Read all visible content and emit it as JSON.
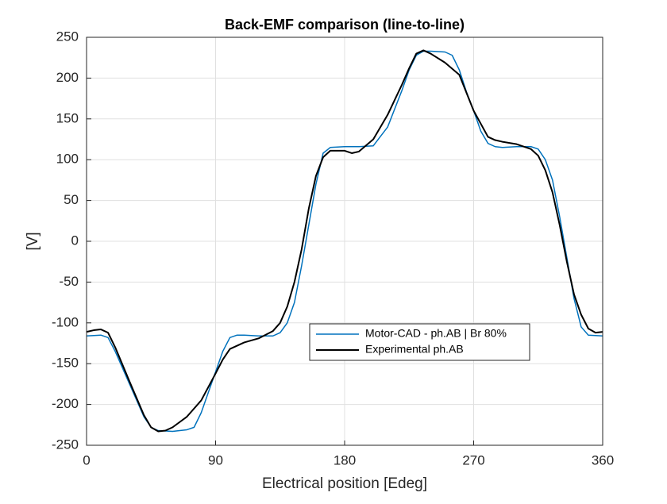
{
  "chart_data": {
    "type": "line",
    "title": "Back-EMF comparison (line-to-line)",
    "x_label": "Electrical position [Edeg]",
    "y_label": "[V]",
    "xlim": [
      0,
      360
    ],
    "xticks": [
      0,
      90,
      180,
      270,
      360
    ],
    "ylim": [
      -250,
      250
    ],
    "yticks": [
      -250,
      -200,
      -150,
      -100,
      -50,
      0,
      50,
      100,
      150,
      200,
      250
    ],
    "grid": true,
    "legend": "center",
    "series": [
      {
        "name": "Motor-CAD - ph.AB | Br 80%",
        "color": "#0072bd",
        "x": [
          0,
          10,
          15,
          20,
          30,
          40,
          45,
          50,
          60,
          70,
          75,
          80,
          85,
          90,
          95,
          100,
          105,
          110,
          120,
          130,
          135,
          140,
          145,
          150,
          155,
          160,
          165,
          170,
          180,
          190,
          200,
          210,
          220,
          225,
          230,
          235,
          240,
          250,
          255,
          260,
          265,
          270,
          275,
          280,
          285,
          290,
          300,
          310,
          315,
          320,
          325,
          330,
          335,
          340,
          345,
          350,
          360
        ],
        "values": [
          -116,
          -115,
          -118,
          -135,
          -175,
          -215,
          -228,
          -232,
          -233,
          -231,
          -228,
          -210,
          -185,
          -160,
          -135,
          -118,
          -115,
          -115,
          -116,
          -116,
          -112,
          -100,
          -75,
          -30,
          20,
          70,
          108,
          115,
          116,
          116,
          117,
          140,
          185,
          210,
          228,
          233,
          233,
          232,
          228,
          210,
          183,
          160,
          135,
          120,
          116,
          115,
          116,
          116,
          113,
          100,
          75,
          30,
          -20,
          -70,
          -105,
          -115,
          -116
        ]
      },
      {
        "name": "Experimental ph.AB",
        "color": "#000000",
        "x": [
          0,
          5,
          10,
          15,
          20,
          30,
          40,
          45,
          50,
          55,
          60,
          70,
          80,
          90,
          95,
          100,
          110,
          120,
          130,
          135,
          140,
          145,
          150,
          155,
          160,
          165,
          170,
          180,
          185,
          190,
          200,
          210,
          220,
          225,
          230,
          235,
          240,
          250,
          260,
          270,
          280,
          285,
          290,
          300,
          310,
          315,
          320,
          325,
          330,
          335,
          340,
          345,
          350,
          355,
          360
        ],
        "values": [
          -111,
          -109,
          -108,
          -112,
          -130,
          -172,
          -213,
          -228,
          -233,
          -232,
          -228,
          -215,
          -195,
          -162,
          -145,
          -132,
          -124,
          -119,
          -110,
          -100,
          -80,
          -50,
          -10,
          40,
          80,
          103,
          111,
          111,
          108,
          110,
          125,
          155,
          192,
          212,
          230,
          234,
          230,
          219,
          204,
          160,
          128,
          124,
          122,
          119,
          113,
          105,
          87,
          60,
          20,
          -25,
          -65,
          -90,
          -107,
          -112,
          -111
        ]
      }
    ]
  }
}
